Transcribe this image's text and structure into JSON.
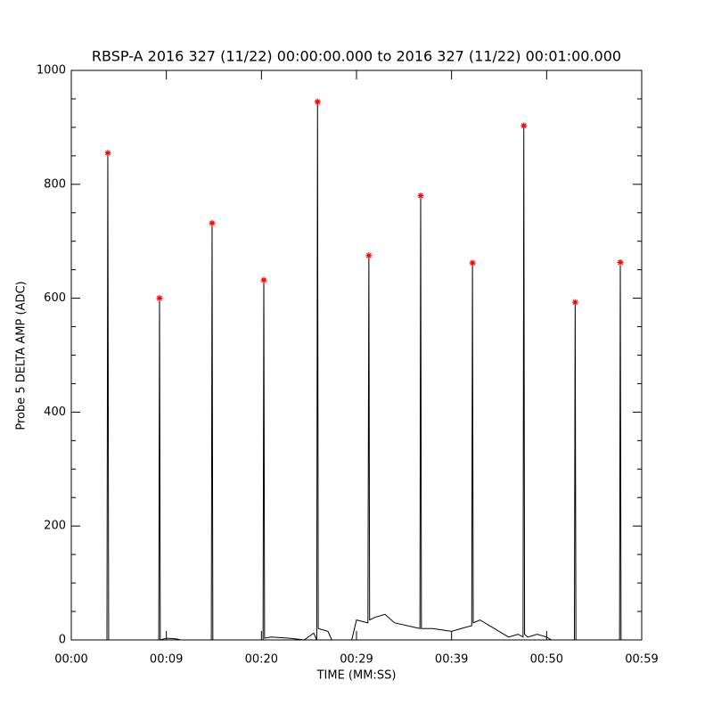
{
  "chart_data": {
    "type": "line",
    "title": "RBSP-A 2016 327 (11/22) 00:00:00.000 to 2016 327 (11/22) 00:01:00.000",
    "xlabel": "TIME (MM:SS)",
    "ylabel": "Probe 5 DELTA AMP (ADC)",
    "xlim": [
      0,
      60
    ],
    "ylim": [
      0,
      1000
    ],
    "xticks": [
      {
        "value": 0,
        "label": "00:00"
      },
      {
        "value": 10,
        "label": "00:09"
      },
      {
        "value": 20,
        "label": "00:20"
      },
      {
        "value": 30,
        "label": "00:29"
      },
      {
        "value": 40,
        "label": "00:39"
      },
      {
        "value": 50,
        "label": "00:50"
      },
      {
        "value": 60,
        "label": "00:59"
      }
    ],
    "yticks": [
      0,
      200,
      400,
      600,
      800,
      1000
    ],
    "yminorticks": [
      50,
      100,
      150,
      250,
      300,
      350,
      450,
      500,
      550,
      650,
      700,
      750,
      850,
      900,
      950
    ],
    "series": [
      {
        "type": "line",
        "color": "#000000",
        "x": [
          0,
          3.75,
          3.84,
          3.93,
          9.2,
          9.28,
          9.36,
          10,
          11,
          11.5,
          14.73,
          14.81,
          14.89,
          20.17,
          20.25,
          20.33,
          21,
          23,
          24.5,
          25.5,
          25.82,
          25.9,
          25.98,
          27,
          27.4,
          29.5,
          30,
          31.2,
          31.3,
          31.38,
          32,
          33,
          34,
          36.67,
          36.75,
          36.83,
          38,
          40,
          41,
          42.12,
          42.2,
          42.28,
          43,
          44,
          45,
          46,
          47,
          47.52,
          47.6,
          47.68,
          48,
          49,
          50,
          50.5,
          52.92,
          53.0,
          53.08,
          57.67,
          57.75,
          57.83,
          60
        ],
        "values": [
          0,
          0,
          855,
          0,
          0,
          600,
          0,
          3,
          2,
          0,
          0,
          732,
          0,
          0,
          632,
          3,
          5,
          3,
          0,
          12,
          0,
          945,
          20,
          15,
          0,
          0,
          35,
          30,
          675,
          35,
          40,
          45,
          30,
          20,
          780,
          20,
          20,
          15,
          20,
          25,
          662,
          30,
          35,
          25,
          15,
          5,
          10,
          5,
          903,
          10,
          5,
          10,
          5,
          0,
          0,
          593,
          0,
          0,
          663,
          0,
          0
        ]
      },
      {
        "type": "scatter",
        "color": "#ff0000",
        "x": [
          3.84,
          9.28,
          14.81,
          20.25,
          25.9,
          31.3,
          36.75,
          42.2,
          47.6,
          53.0,
          57.75
        ],
        "values": [
          855,
          600,
          732,
          632,
          945,
          675,
          780,
          662,
          903,
          593,
          663
        ]
      }
    ]
  }
}
